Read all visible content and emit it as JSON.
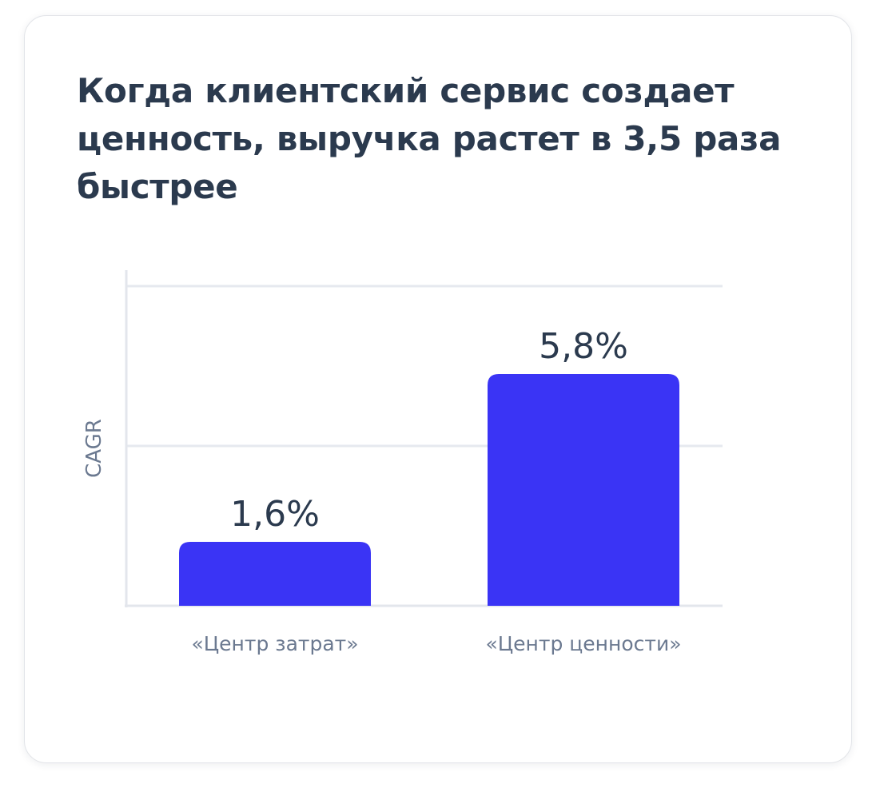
{
  "title": "Когда клиентский сервис создает ценность, выручка растет в 3,5 раза быстрее",
  "chart_data": {
    "type": "bar",
    "categories": [
      "«Центр затрат»",
      "«Центр ценности»"
    ],
    "values": [
      1.6,
      5.8
    ],
    "value_labels": [
      "1,6%",
      "5,8%"
    ],
    "ylabel": "CAGR",
    "xlabel": "",
    "ylim": [
      0,
      8
    ],
    "grid": true,
    "colors": {
      "bar": "#3a34f5",
      "text": "#2b3a4e",
      "muted": "#6b7990"
    }
  }
}
